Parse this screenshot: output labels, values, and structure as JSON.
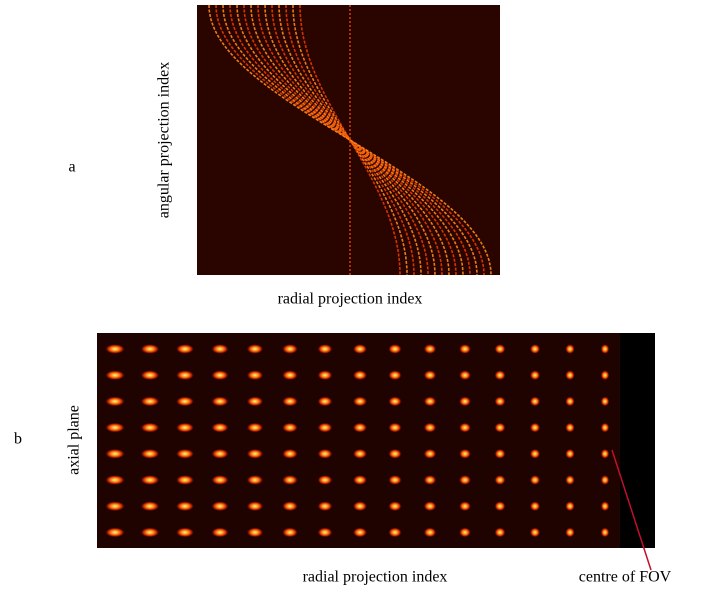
{
  "panels": [
    {
      "label": "a",
      "y_label": "angular projection index",
      "x_label": "radial projection index"
    },
    {
      "label": "b",
      "y_label": "axial plane",
      "x_label": "radial projection index",
      "annotation": "centre of FOV"
    }
  ]
}
